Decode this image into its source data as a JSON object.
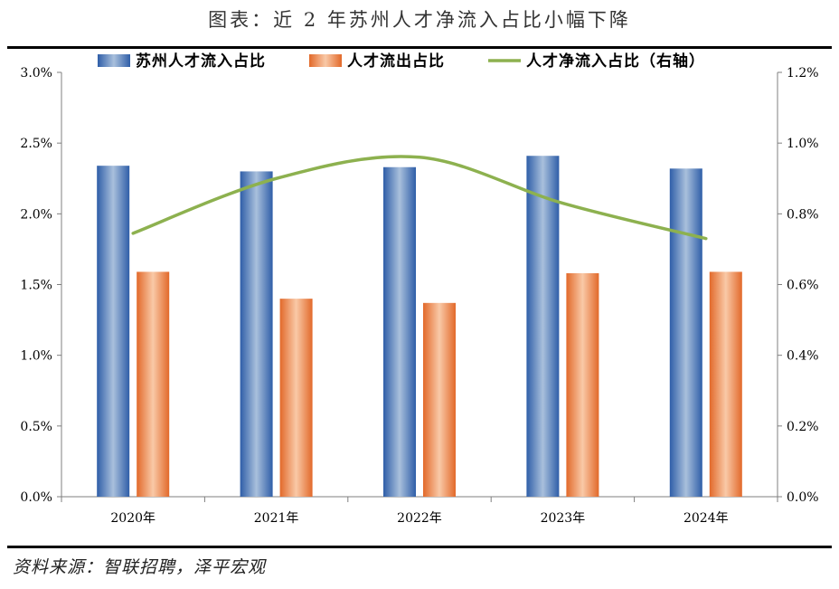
{
  "title": "图表：近 2 年苏州人才净流入占比小幅下降",
  "source": "资料来源：智联招聘，泽平宏观",
  "chart_data": {
    "type": "bar",
    "categories": [
      "2020年",
      "2021年",
      "2022年",
      "2023年",
      "2024年"
    ],
    "series": [
      {
        "name": "苏州人才流入占比",
        "kind": "bar",
        "axis": "left",
        "color": "#4472c4",
        "values": [
          2.34,
          2.3,
          2.33,
          2.41,
          2.32
        ]
      },
      {
        "name": "人才流出占比",
        "kind": "bar",
        "axis": "left",
        "color": "#ed7d31",
        "values": [
          1.59,
          1.4,
          1.37,
          1.58,
          1.59
        ]
      },
      {
        "name": "人才净流入占比（右轴）",
        "kind": "line",
        "axis": "right",
        "color": "#8db14f",
        "values": [
          0.745,
          0.9,
          0.96,
          0.83,
          0.73
        ]
      }
    ],
    "y_left": {
      "min": 0,
      "max": 3.0,
      "step": 0.5,
      "ticks": [
        "0.0%",
        "0.5%",
        "1.0%",
        "1.5%",
        "2.0%",
        "2.5%",
        "3.0%"
      ]
    },
    "y_right": {
      "min": 0,
      "max": 1.2,
      "step": 0.2,
      "ticks": [
        "0.0%",
        "0.2%",
        "0.4%",
        "0.6%",
        "0.8%",
        "1.0%",
        "1.2%"
      ]
    },
    "legend_position": "top",
    "grid": false
  }
}
